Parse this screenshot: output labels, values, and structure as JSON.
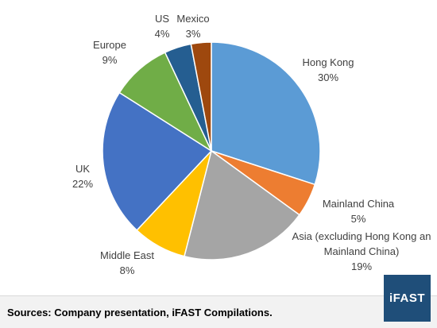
{
  "chart_data": {
    "type": "pie",
    "title": "",
    "series": [
      {
        "values": [
          30,
          5,
          19,
          8,
          22,
          9,
          4,
          3
        ]
      }
    ],
    "categories": [
      "Hong Kong",
      "Mainland China",
      "Asia (excluding Hong Kong and Mainland China)",
      "Middle East",
      "UK",
      "Europe",
      "US",
      "Mexico"
    ],
    "slices": [
      {
        "name": "Hong Kong",
        "value": 30,
        "pct_label": "30%",
        "color": "#5b9bd5"
      },
      {
        "name": "Mainland China",
        "value": 5,
        "pct_label": "5%",
        "color": "#ed7d31"
      },
      {
        "name": "Asia (excluding Hong Kong and Mainland China)",
        "value": 19,
        "pct_label": "19%",
        "color": "#a5a5a5"
      },
      {
        "name": "Middle East",
        "value": 8,
        "pct_label": "8%",
        "color": "#ffc000"
      },
      {
        "name": "UK",
        "value": 22,
        "pct_label": "22%",
        "color": "#4472c4"
      },
      {
        "name": "Europe",
        "value": 9,
        "pct_label": "9%",
        "color": "#70ad47"
      },
      {
        "name": "US",
        "value": 4,
        "pct_label": "4%",
        "color": "#255e91"
      },
      {
        "name": "Mexico",
        "value": 3,
        "pct_label": "3%",
        "color": "#9e480e"
      }
    ],
    "legend": "none",
    "label_lines": {
      "Asia (excluding Hong Kong and Mainland China)": [
        "Asia (excluding Hong Kong an",
        "Mainland China)"
      ]
    }
  },
  "footer": {
    "source_text": "Sources: Company presentation, iFAST Compilations."
  },
  "logo": {
    "text": "iFAST",
    "color": "#1f4e79"
  }
}
